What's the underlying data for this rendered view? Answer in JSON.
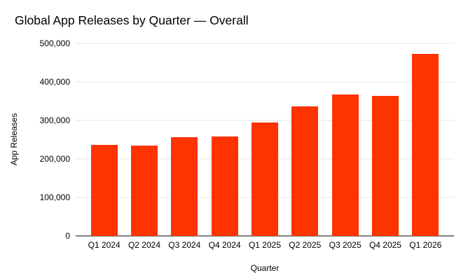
{
  "chart_data": {
    "type": "bar",
    "title": "Global App Releases by Quarter — Overall",
    "xlabel": "Quarter",
    "ylabel": "App Releases",
    "categories": [
      "Q1 2024",
      "Q2 2024",
      "Q3 2024",
      "Q4 2024",
      "Q1 2025",
      "Q2 2025",
      "Q3 2025",
      "Q4 2025",
      "Q1 2026"
    ],
    "values": [
      237000,
      235000,
      256000,
      258000,
      295000,
      336000,
      368000,
      364000,
      472000
    ],
    "ylim": [
      0,
      500000
    ],
    "ytick_interval": 100000,
    "ytick_labels": [
      "0",
      "100,000",
      "200,000",
      "300,000",
      "400,000",
      "500,000"
    ],
    "grid": true,
    "legend_position": "none",
    "colors": {
      "bar": "#fe3302",
      "gridline": "#e6e6e6",
      "axis_line": "#808080",
      "text": "#000000",
      "background": "#ffffff"
    }
  }
}
